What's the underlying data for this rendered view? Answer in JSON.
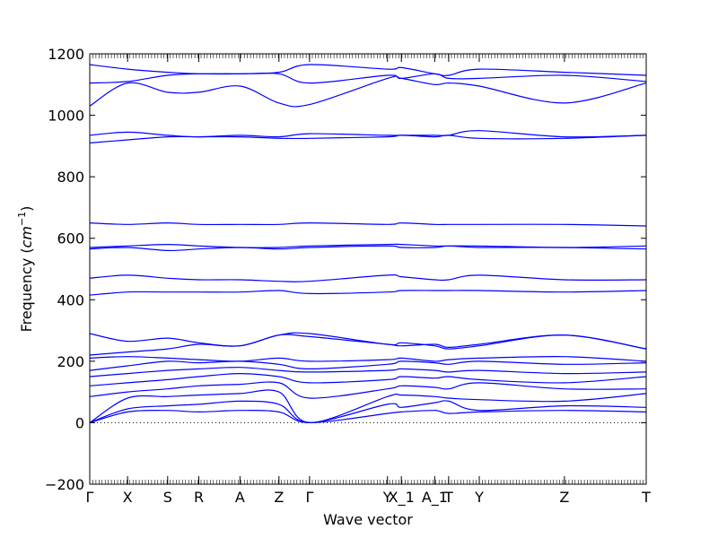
{
  "chart_data": {
    "type": "line",
    "title": "",
    "xlabel": "Wave vector",
    "ylabel_text": "Frequency (",
    "ylabel_unit_base": "cm",
    "ylabel_unit_exp": "−1",
    "ylabel_close": ")",
    "ylim": [
      -200,
      1200
    ],
    "y_ticks": [
      "−200",
      "0",
      "200",
      "400",
      "600",
      "800",
      "1000",
      "1200"
    ],
    "y_tick_values": [
      -200,
      0,
      200,
      400,
      600,
      800,
      1000,
      1200
    ],
    "xlim": [
      0,
      1
    ],
    "x_ticks": [
      {
        "label": "Γ",
        "pos": 0.0
      },
      {
        "label": "X",
        "pos": 0.068
      },
      {
        "label": "S",
        "pos": 0.14
      },
      {
        "label": "R",
        "pos": 0.196
      },
      {
        "label": "A",
        "pos": 0.27
      },
      {
        "label": "Z",
        "pos": 0.34
      },
      {
        "label": "Γ",
        "pos": 0.395
      },
      {
        "label": "Y",
        "pos": 0.535
      },
      {
        "label": "X_1",
        "pos": 0.56
      },
      {
        "label": "A_1",
        "pos": 0.62
      },
      {
        "label": "T",
        "pos": 0.645
      },
      {
        "label": "Y",
        "pos": 0.7
      },
      {
        "label": "Z",
        "pos": 0.853
      },
      {
        "label": "T",
        "pos": 1.0
      }
    ],
    "zero_line": true,
    "line_color": "#0000ff",
    "bands": [
      {
        "x": [
          0,
          0.068,
          0.14,
          0.196,
          0.27,
          0.34,
          0.395,
          0.535,
          0.56,
          0.62,
          0.645,
          0.7,
          0.853,
          1.0
        ],
        "y": [
          0,
          80,
          85,
          90,
          95,
          100,
          0,
          85,
          90,
          85,
          80,
          75,
          70,
          95
        ]
      },
      {
        "x": [
          0,
          0.068,
          0.14,
          0.196,
          0.27,
          0.34,
          0.395,
          0.535,
          0.56,
          0.62,
          0.645,
          0.7,
          0.853,
          1.0
        ],
        "y": [
          0,
          45,
          55,
          60,
          70,
          60,
          0,
          60,
          50,
          65,
          70,
          40,
          55,
          50
        ]
      },
      {
        "x": [
          0,
          0.068,
          0.14,
          0.196,
          0.27,
          0.34,
          0.395,
          0.535,
          0.56,
          0.62,
          0.645,
          0.7,
          0.853,
          1.0
        ],
        "y": [
          0,
          35,
          40,
          35,
          40,
          35,
          0,
          30,
          35,
          40,
          30,
          35,
          40,
          35
        ]
      },
      {
        "x": [
          0,
          0.068,
          0.14,
          0.196,
          0.27,
          0.34,
          0.395,
          0.535,
          0.56,
          0.62,
          0.645,
          0.7,
          0.853,
          1.0
        ],
        "y": [
          85,
          100,
          110,
          120,
          125,
          130,
          80,
          110,
          120,
          115,
          110,
          130,
          110,
          110
        ]
      },
      {
        "x": [
          0,
          0.068,
          0.14,
          0.196,
          0.27,
          0.34,
          0.395,
          0.535,
          0.56,
          0.62,
          0.645,
          0.7,
          0.853,
          1.0
        ],
        "y": [
          120,
          130,
          140,
          150,
          160,
          150,
          130,
          140,
          150,
          145,
          150,
          140,
          130,
          150
        ]
      },
      {
        "x": [
          0,
          0.068,
          0.14,
          0.196,
          0.27,
          0.34,
          0.395,
          0.535,
          0.56,
          0.62,
          0.645,
          0.7,
          0.853,
          1.0
        ],
        "y": [
          150,
          160,
          170,
          175,
          180,
          170,
          165,
          170,
          175,
          170,
          165,
          170,
          160,
          165
        ]
      },
      {
        "x": [
          0,
          0.068,
          0.14,
          0.196,
          0.27,
          0.34,
          0.395,
          0.535,
          0.56,
          0.62,
          0.645,
          0.7,
          0.853,
          1.0
        ],
        "y": [
          170,
          185,
          200,
          195,
          200,
          190,
          175,
          190,
          200,
          195,
          190,
          200,
          190,
          195
        ]
      },
      {
        "x": [
          0,
          0.068,
          0.14,
          0.196,
          0.27,
          0.34,
          0.395,
          0.535,
          0.56,
          0.62,
          0.645,
          0.7,
          0.853,
          1.0
        ],
        "y": [
          210,
          215,
          210,
          205,
          200,
          210,
          200,
          205,
          210,
          200,
          205,
          210,
          215,
          200
        ]
      },
      {
        "x": [
          0,
          0.068,
          0.14,
          0.196,
          0.27,
          0.34,
          0.395,
          0.535,
          0.56,
          0.62,
          0.645,
          0.7,
          0.853,
          1.0
        ],
        "y": [
          220,
          230,
          240,
          255,
          250,
          285,
          290,
          255,
          260,
          250,
          240,
          250,
          285,
          240
        ]
      },
      {
        "x": [
          0,
          0.068,
          0.14,
          0.196,
          0.27,
          0.34,
          0.395,
          0.535,
          0.56,
          0.62,
          0.645,
          0.7,
          0.853,
          1.0
        ],
        "y": [
          290,
          265,
          275,
          260,
          250,
          285,
          280,
          255,
          250,
          255,
          245,
          255,
          285,
          240
        ]
      },
      {
        "x": [
          0,
          0.068,
          0.14,
          0.196,
          0.27,
          0.34,
          0.395,
          0.535,
          0.56,
          0.62,
          0.645,
          0.7,
          0.853,
          1.0
        ],
        "y": [
          415,
          425,
          425,
          425,
          425,
          430,
          420,
          425,
          430,
          430,
          430,
          430,
          425,
          430
        ]
      },
      {
        "x": [
          0,
          0.068,
          0.14,
          0.196,
          0.27,
          0.34,
          0.395,
          0.535,
          0.56,
          0.62,
          0.645,
          0.7,
          0.853,
          1.0
        ],
        "y": [
          470,
          480,
          470,
          465,
          465,
          460,
          460,
          480,
          475,
          465,
          465,
          480,
          465,
          465
        ]
      },
      {
        "x": [
          0,
          0.068,
          0.14,
          0.196,
          0.27,
          0.34,
          0.395,
          0.535,
          0.56,
          0.62,
          0.645,
          0.7,
          0.853,
          1.0
        ],
        "y": [
          565,
          570,
          560,
          565,
          570,
          565,
          570,
          575,
          570,
          570,
          575,
          570,
          570,
          565
        ]
      },
      {
        "x": [
          0,
          0.068,
          0.14,
          0.196,
          0.27,
          0.34,
          0.395,
          0.535,
          0.56,
          0.62,
          0.645,
          0.7,
          0.853,
          1.0
        ],
        "y": [
          570,
          575,
          580,
          575,
          570,
          570,
          575,
          580,
          580,
          575,
          575,
          575,
          570,
          575
        ]
      },
      {
        "x": [
          0,
          0.068,
          0.14,
          0.196,
          0.27,
          0.34,
          0.395,
          0.535,
          0.56,
          0.62,
          0.645,
          0.7,
          0.853,
          1.0
        ],
        "y": [
          650,
          645,
          650,
          645,
          645,
          645,
          650,
          645,
          650,
          645,
          645,
          645,
          645,
          640
        ]
      },
      {
        "x": [
          0,
          0.068,
          0.14,
          0.196,
          0.27,
          0.34,
          0.395,
          0.535,
          0.56,
          0.62,
          0.645,
          0.7,
          0.853,
          1.0
        ],
        "y": [
          910,
          920,
          930,
          930,
          930,
          925,
          925,
          930,
          935,
          930,
          935,
          925,
          925,
          935
        ]
      },
      {
        "x": [
          0,
          0.068,
          0.14,
          0.196,
          0.27,
          0.34,
          0.395,
          0.535,
          0.56,
          0.62,
          0.645,
          0.7,
          0.853,
          1.0
        ],
        "y": [
          935,
          945,
          935,
          930,
          935,
          930,
          940,
          935,
          935,
          935,
          935,
          950,
          930,
          935
        ]
      },
      {
        "x": [
          0,
          0.068,
          0.14,
          0.196,
          0.27,
          0.34,
          0.395,
          0.535,
          0.56,
          0.62,
          0.645,
          0.7,
          0.853,
          1.0
        ],
        "y": [
          1030,
          1105,
          1075,
          1075,
          1095,
          1040,
          1035,
          1120,
          1120,
          1100,
          1105,
          1095,
          1040,
          1105
        ]
      },
      {
        "x": [
          0,
          0.068,
          0.14,
          0.196,
          0.27,
          0.34,
          0.395,
          0.535,
          0.56,
          0.62,
          0.645,
          0.7,
          0.853,
          1.0
        ],
        "y": [
          1105,
          1110,
          1130,
          1135,
          1135,
          1135,
          1105,
          1130,
          1120,
          1135,
          1120,
          1120,
          1130,
          1110
        ]
      },
      {
        "x": [
          0,
          0.068,
          0.14,
          0.196,
          0.27,
          0.34,
          0.395,
          0.535,
          0.56,
          0.62,
          0.645,
          0.7,
          0.853,
          1.0
        ],
        "y": [
          1165,
          1150,
          1140,
          1135,
          1135,
          1140,
          1165,
          1150,
          1155,
          1135,
          1130,
          1150,
          1140,
          1130
        ]
      }
    ]
  }
}
